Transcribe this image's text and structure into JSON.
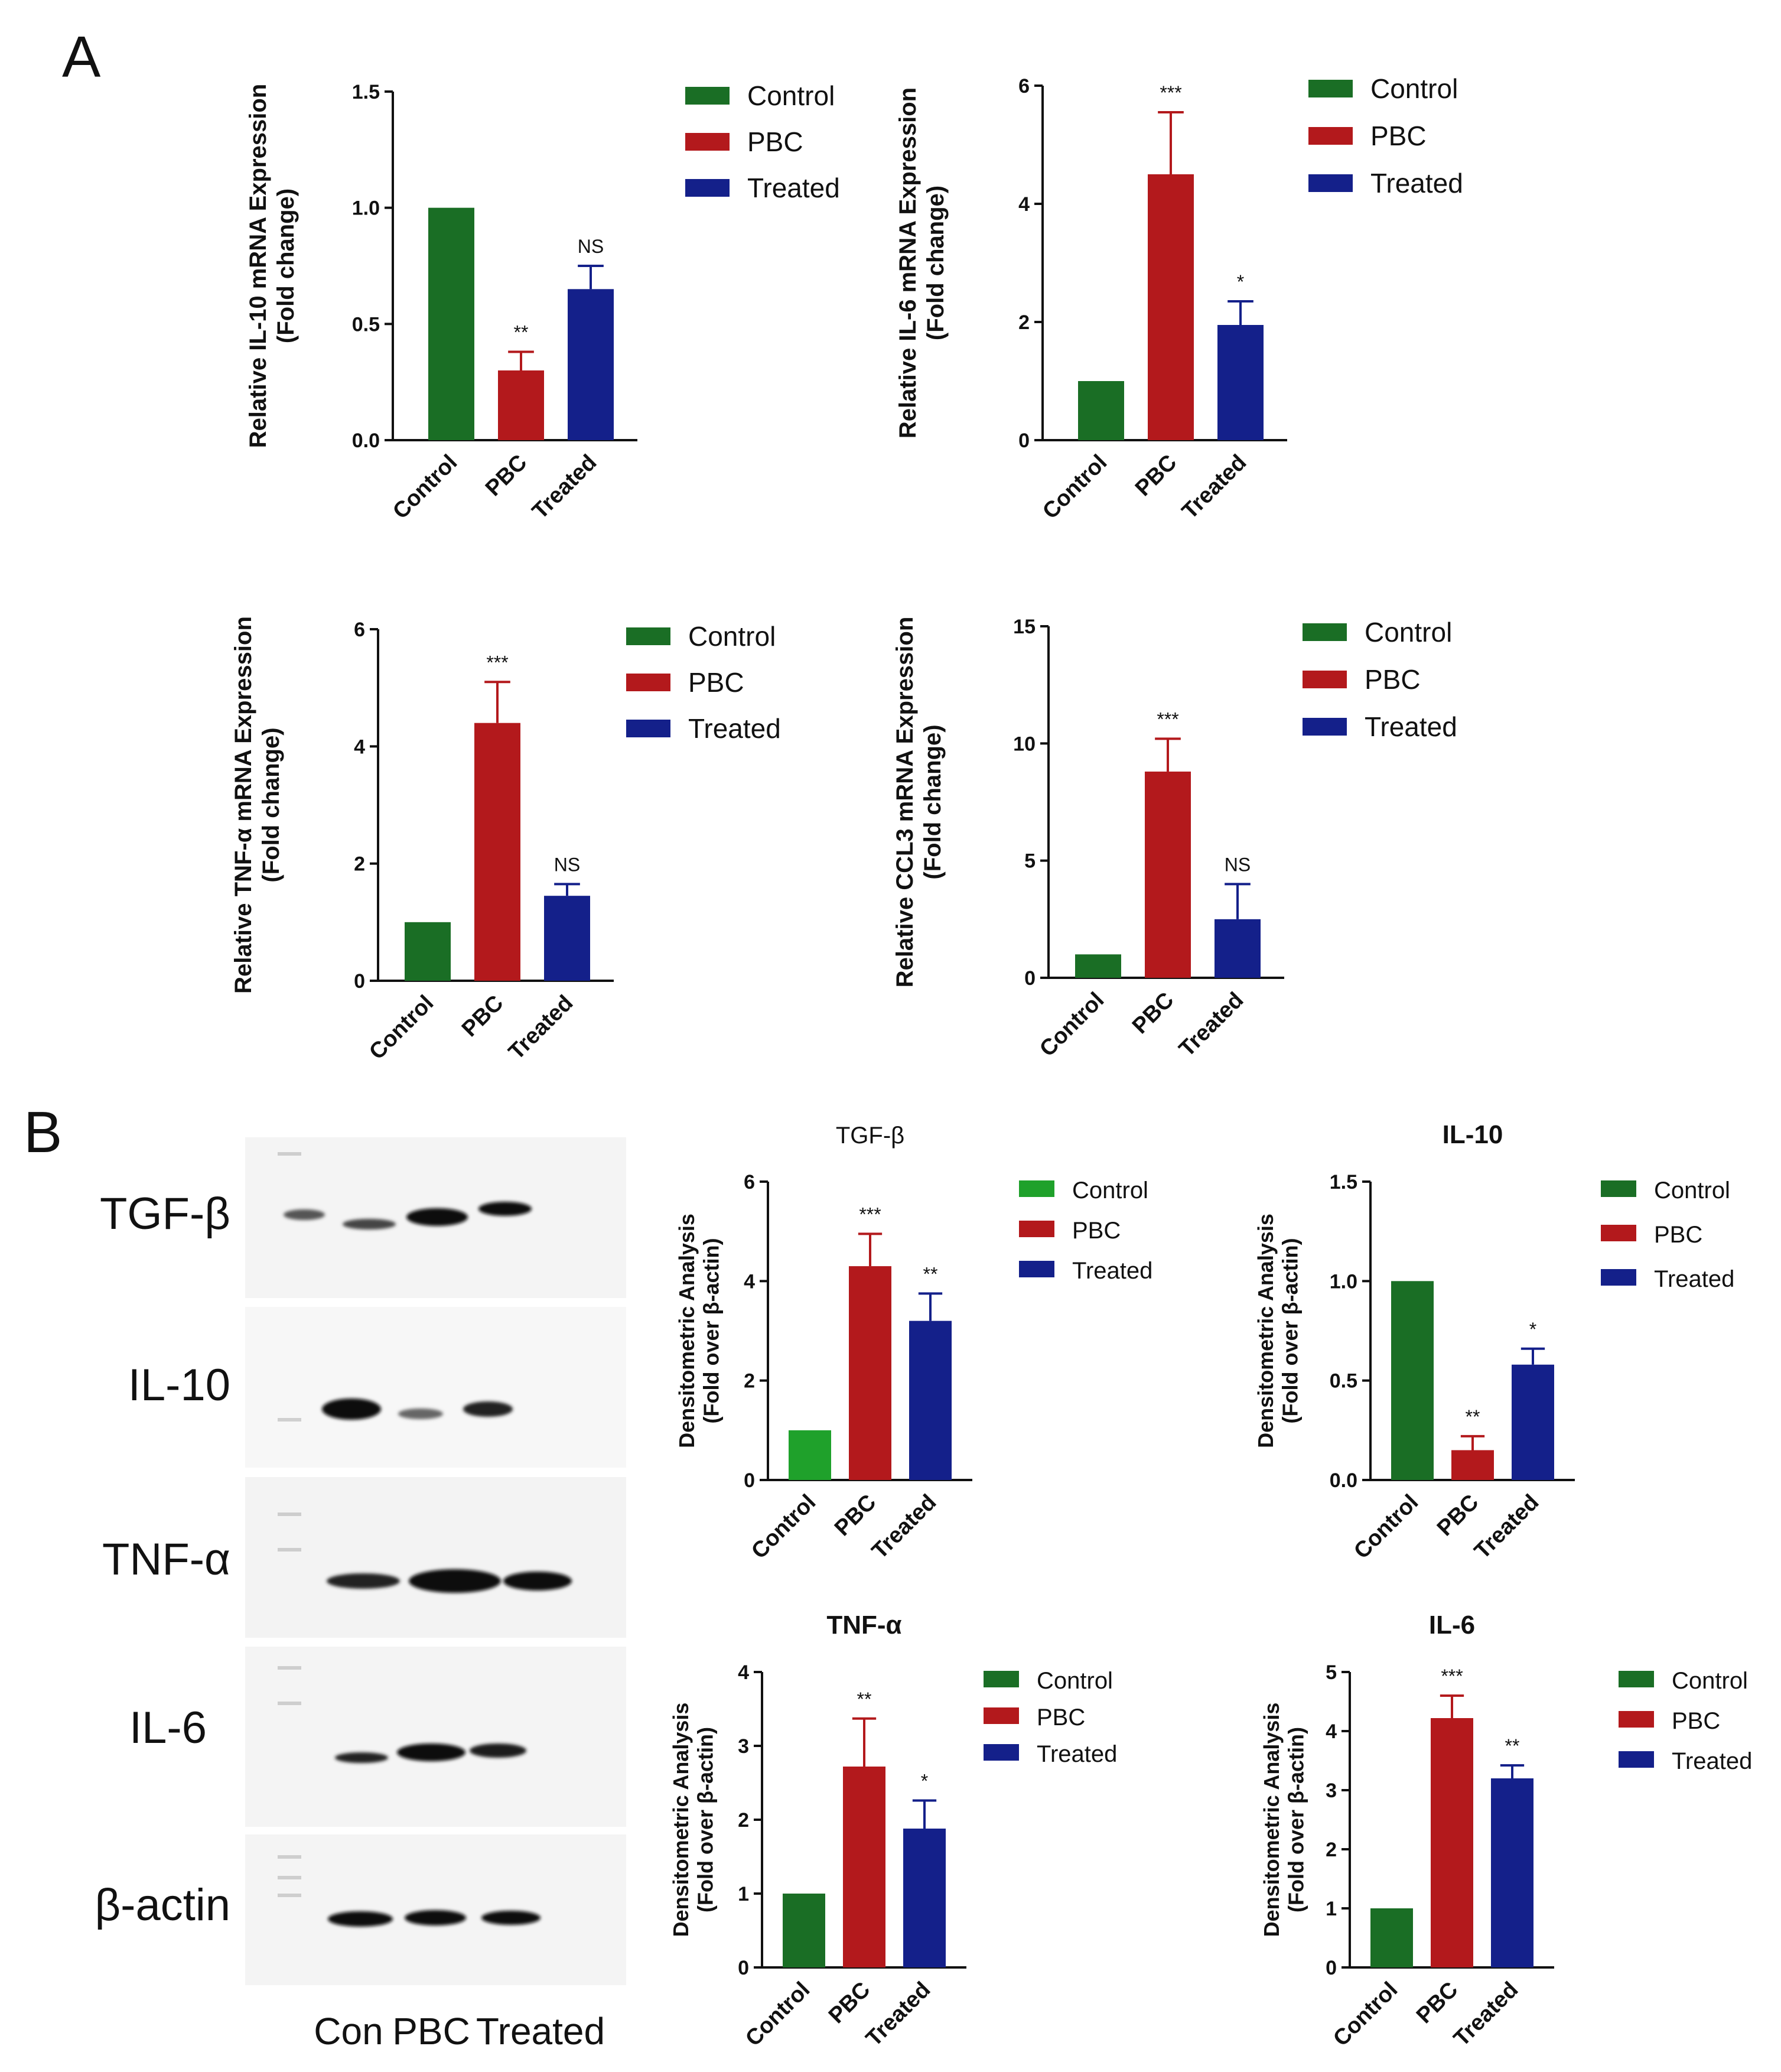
{
  "panels": {
    "a_label": "A",
    "b_label": "B"
  },
  "colors": {
    "control": "#1a6e25",
    "control_bright": "#1fa12b",
    "pbc": "#b3191c",
    "treated": "#14208a",
    "error_bar_pbc": "#b3191c",
    "error_bar_treated": "#14208a"
  },
  "blot": {
    "proteins": [
      "TGF-β",
      "IL-10",
      "TNF-α",
      "IL-6",
      "β-actin"
    ],
    "lanes": [
      "Con",
      "PBC",
      "Treated"
    ]
  },
  "chart_data": [
    {
      "id": "a-il10",
      "panel": "A",
      "type": "bar",
      "title": "",
      "ylabel_lines": [
        "Relative IL-10 mRNA Expression",
        "(Fold change)"
      ],
      "categories": [
        "Control",
        "PBC",
        "Treated"
      ],
      "values": [
        1.0,
        0.3,
        0.65
      ],
      "errors": [
        0,
        0.08,
        0.1
      ],
      "significance": [
        "",
        "**",
        "NS"
      ],
      "ylim": [
        0,
        1.5
      ],
      "yticks": [
        "0.0",
        "0.5",
        "1.0",
        "1.5"
      ],
      "legend": [
        "Control",
        "PBC",
        "Treated"
      ]
    },
    {
      "id": "a-il6",
      "panel": "A",
      "type": "bar",
      "title": "",
      "ylabel_lines": [
        "Relative IL-6 mRNA Expression",
        "(Fold change)"
      ],
      "categories": [
        "Control",
        "PBC",
        "Treated"
      ],
      "values": [
        1.0,
        4.5,
        1.95
      ],
      "errors": [
        0,
        1.05,
        0.4
      ],
      "significance": [
        "",
        "***",
        "*"
      ],
      "ylim": [
        0,
        6
      ],
      "yticks": [
        "0",
        "2",
        "4",
        "6"
      ],
      "legend": [
        "Control",
        "PBC",
        "Treated"
      ]
    },
    {
      "id": "a-tnfa",
      "panel": "A",
      "type": "bar",
      "title": "",
      "ylabel_lines": [
        "Relative TNF-α mRNA Expression",
        "(Fold change)"
      ],
      "categories": [
        "Control",
        "PBC",
        "Treated"
      ],
      "values": [
        1.0,
        4.4,
        1.45
      ],
      "errors": [
        0,
        0.7,
        0.2
      ],
      "significance": [
        "",
        "***",
        "NS"
      ],
      "ylim": [
        0,
        6
      ],
      "yticks": [
        "0",
        "2",
        "4",
        "6"
      ],
      "legend": [
        "Control",
        "PBC",
        "Treated"
      ]
    },
    {
      "id": "a-ccl3",
      "panel": "A",
      "type": "bar",
      "title": "",
      "ylabel_lines": [
        "Relative CCL3 mRNA Expression",
        "(Fold change)"
      ],
      "categories": [
        "Control",
        "PBC",
        "Treated"
      ],
      "values": [
        1.0,
        8.8,
        2.5
      ],
      "errors": [
        0,
        1.4,
        1.5
      ],
      "significance": [
        "",
        "***",
        "NS"
      ],
      "ylim": [
        0,
        15
      ],
      "yticks": [
        "0",
        "5",
        "10",
        "15"
      ],
      "legend": [
        "Control",
        "PBC",
        "Treated"
      ]
    },
    {
      "id": "b-tgfb",
      "panel": "B",
      "type": "bar",
      "title": "TGF-β",
      "ylabel_lines": [
        "Densitometric Analysis",
        "(Fold over β-actin)"
      ],
      "categories": [
        "Control",
        "PBC",
        "Treated"
      ],
      "values": [
        1.0,
        4.3,
        3.2
      ],
      "errors": [
        0,
        0.65,
        0.55
      ],
      "significance": [
        "",
        "***",
        "**"
      ],
      "ylim": [
        0,
        6
      ],
      "yticks": [
        "0",
        "2",
        "4",
        "6"
      ],
      "legend": [
        "Control",
        "PBC",
        "Treated"
      ]
    },
    {
      "id": "b-il10",
      "panel": "B",
      "type": "bar",
      "title": "IL-10",
      "ylabel_lines": [
        "Densitometric Analysis",
        "(Fold over β-actin)"
      ],
      "categories": [
        "Control",
        "PBC",
        "Treated"
      ],
      "values": [
        1.0,
        0.15,
        0.58
      ],
      "errors": [
        0,
        0.07,
        0.08
      ],
      "significance": [
        "",
        "**",
        "*"
      ],
      "ylim": [
        0,
        1.5
      ],
      "yticks": [
        "0.0",
        "0.5",
        "1.0",
        "1.5"
      ],
      "legend": [
        "Control",
        "PBC",
        "Treated"
      ]
    },
    {
      "id": "b-tnfa",
      "panel": "B",
      "type": "bar",
      "title": "TNF-α",
      "ylabel_lines": [
        "Densitometric Analysis",
        "(Fold over β-actin)"
      ],
      "categories": [
        "Control",
        "PBC",
        "Treated"
      ],
      "values": [
        1.0,
        2.72,
        1.88
      ],
      "errors": [
        0,
        0.65,
        0.38
      ],
      "significance": [
        "",
        "**",
        "*"
      ],
      "ylim": [
        0,
        4
      ],
      "yticks": [
        "0",
        "1",
        "2",
        "3",
        "4"
      ],
      "legend": [
        "Control",
        "PBC",
        "Treated"
      ]
    },
    {
      "id": "b-il6",
      "panel": "B",
      "type": "bar",
      "title": "IL-6",
      "ylabel_lines": [
        "Densitometric Analysis",
        "(Fold over β-actin)"
      ],
      "categories": [
        "Control",
        "PBC",
        "Treated"
      ],
      "values": [
        1.0,
        4.22,
        3.2
      ],
      "errors": [
        0,
        0.38,
        0.22
      ],
      "significance": [
        "",
        "***",
        "**"
      ],
      "ylim": [
        0,
        5
      ],
      "yticks": [
        "0",
        "1",
        "2",
        "3",
        "4",
        "5"
      ],
      "legend": [
        "Control",
        "PBC",
        "Treated"
      ]
    }
  ]
}
